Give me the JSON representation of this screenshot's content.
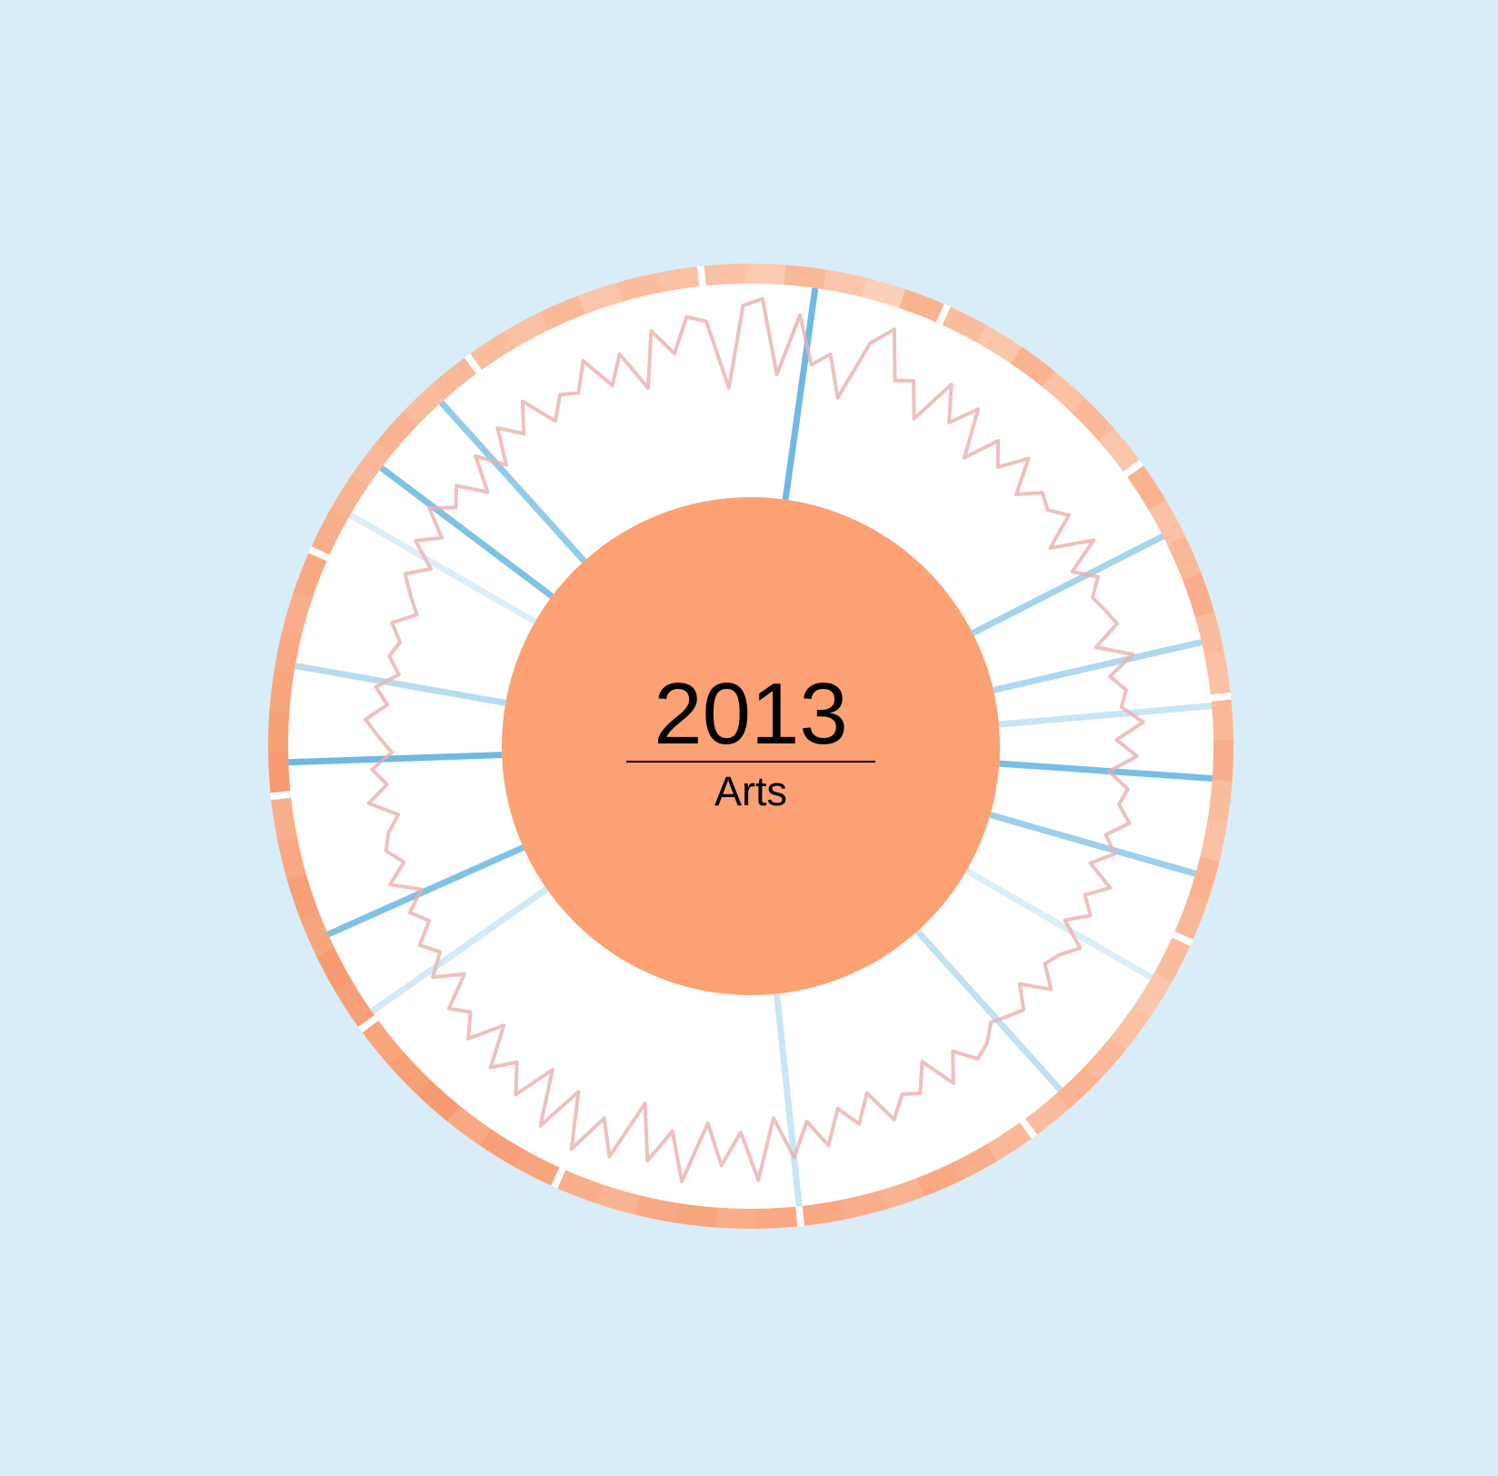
{
  "chart_data": {
    "type": "radial",
    "title": "2013",
    "subtitle": "Arts",
    "center_color": "#fba173",
    "ring": {
      "color_low": "#fde3d3",
      "color_high": "#f4834f",
      "values": [
        [
          0.35,
          0.25,
          0.45,
          0.3,
          0.2,
          0.5
        ],
        [
          0.4,
          0.3,
          0.5,
          0.35,
          0.45,
          0.3
        ],
        [
          0.5,
          0.35,
          0.45,
          0.55,
          0.4,
          0.35
        ],
        [
          0.45,
          0.55,
          0.4,
          0.35,
          0.5,
          0.45
        ],
        [
          0.4,
          0.3,
          0.35,
          0.45,
          0.5,
          0.4
        ],
        [
          0.45,
          0.55,
          0.6,
          0.5,
          0.55,
          0.6
        ],
        [
          0.6,
          0.55,
          0.65,
          0.6,
          0.5,
          0.55
        ],
        [
          0.65,
          0.7,
          0.6,
          0.75,
          0.7,
          0.65
        ],
        [
          0.7,
          0.75,
          0.65,
          0.7,
          0.6,
          0.55
        ],
        [
          0.75,
          0.7,
          0.65,
          0.6,
          0.55,
          0.6
        ],
        [
          0.55,
          0.5,
          0.45,
          0.5,
          0.4,
          0.45
        ],
        [
          0.4,
          0.35,
          0.45,
          0.3,
          0.4,
          0.35
        ]
      ]
    },
    "line": {
      "color": "#eab0ad",
      "rlim": [
        0,
        1
      ],
      "values": [
        0.8,
        0.3,
        0.9,
        0.95,
        0.4,
        0.85,
        0.5,
        0.6,
        0.3,
        0.75,
        0.9,
        0.55,
        0.6,
        0.35,
        0.7,
        0.45,
        0.65,
        0.3,
        0.55,
        0.4,
        0.6,
        0.35,
        0.5,
        0.45,
        0.55,
        0.3,
        0.6,
        0.35,
        0.5,
        0.4,
        0.45,
        0.5,
        0.3,
        0.55,
        0.35,
        0.45,
        0.4,
        0.55,
        0.35,
        0.5,
        0.3,
        0.45,
        0.4,
        0.5,
        0.35,
        0.45,
        0.3,
        0.5,
        0.35,
        0.45,
        0.3,
        0.5,
        0.4,
        0.35,
        0.5,
        0.3,
        0.45,
        0.4,
        0.35,
        0.45,
        0.5,
        0.35,
        0.55,
        0.3,
        0.5,
        0.45,
        0.6,
        0.35,
        0.55,
        0.4,
        0.65,
        0.45,
        0.7,
        0.4,
        0.85,
        0.5,
        0.75,
        0.45,
        0.9,
        0.55,
        0.8,
        0.4,
        0.85,
        0.6,
        0.9,
        0.5,
        0.85,
        0.45,
        0.75,
        0.55,
        0.7,
        0.4,
        0.65,
        0.5,
        0.6,
        0.35,
        0.55,
        0.4,
        0.5,
        0.35,
        0.45,
        0.3,
        0.5,
        0.35,
        0.45,
        0.4,
        0.3,
        0.5,
        0.35,
        0.45,
        0.3,
        0.4,
        0.5,
        0.35,
        0.45,
        0.3,
        0.4,
        0.35,
        0.45,
        0.3,
        0.4,
        0.5,
        0.35,
        0.55,
        0.4,
        0.6,
        0.45,
        0.55,
        0.35,
        0.6,
        0.4,
        0.65,
        0.5,
        0.7,
        0.45,
        0.6,
        0.55,
        0.75,
        0.5,
        0.7,
        0.4,
        0.8,
        0.6,
        0.85
      ]
    },
    "spikes": {
      "color": "#4aa8dc",
      "xlim": [
        0,
        360
      ],
      "x": [
        8,
        318,
        307,
        63,
        77,
        94,
        106,
        138,
        174,
        246,
        268,
        280,
        300,
        235,
        85,
        120
      ],
      "values": [
        0.8,
        0.6,
        0.7,
        0.5,
        0.45,
        0.75,
        0.55,
        0.35,
        0.3,
        0.7,
        0.8,
        0.4,
        0.2,
        0.25,
        0.3,
        0.2
      ]
    }
  }
}
